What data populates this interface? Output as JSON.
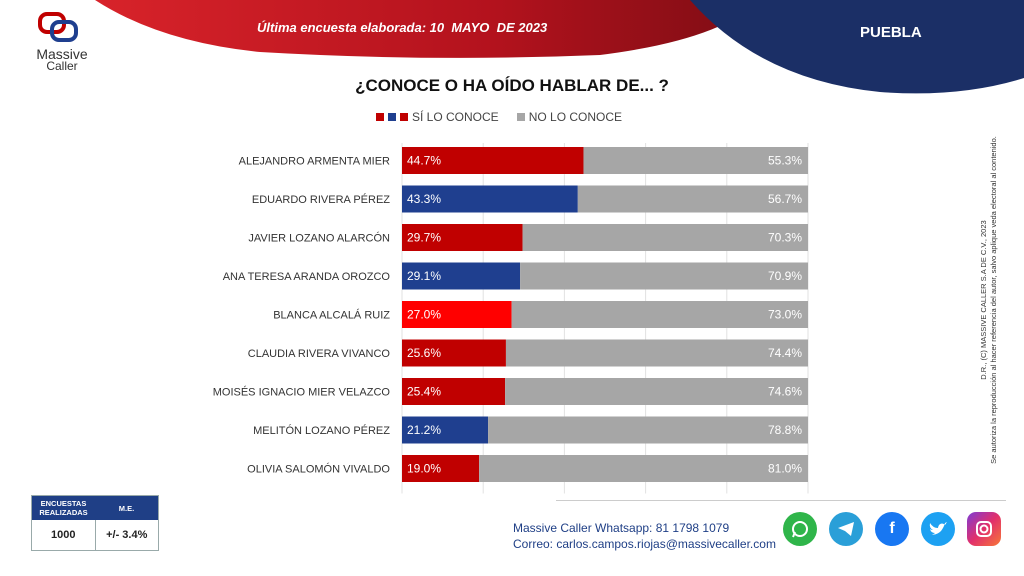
{
  "header": {
    "brand_line1": "Massive",
    "brand_line2": "Caller",
    "survey_date": "Última encuesta elaborada: 10  MAYO  DE 2023",
    "region": "PUEBLA"
  },
  "colors": {
    "red": "#c00000",
    "bright_red": "#ff0000",
    "blue": "#1f3f8f",
    "gray": "#a6a6a6",
    "header_red": "#b3121d",
    "header_navy": "#1b2f66"
  },
  "legend": {
    "known": "SÍ LO CONOCE",
    "unknown": "NO LO CONOCE"
  },
  "chart_data": {
    "type": "bar",
    "orientation": "horizontal-stacked-100",
    "title": "¿CONOCE O HA OÍDO HABLAR DE... ?",
    "categories": [
      "ALEJANDRO ARMENTA MIER",
      "EDUARDO RIVERA PÉREZ",
      "JAVIER LOZANO ALARCÓN",
      "ANA TERESA ARANDA OROZCO",
      "BLANCA ALCALÁ RUIZ",
      "CLAUDIA RIVERA VIVANCO",
      "MOISÉS IGNACIO MIER VELAZCO",
      "MELITÓN LOZANO PÉREZ",
      "OLIVIA SALOMÓN VIVALDO"
    ],
    "series": [
      {
        "name": "SÍ LO CONOCE",
        "values": [
          44.7,
          43.3,
          29.7,
          29.1,
          27.0,
          25.6,
          25.4,
          21.2,
          19.0
        ],
        "labels": [
          "44.7%",
          "43.3%",
          "29.7%",
          "29.1%",
          "27.0%",
          "25.6%",
          "25.4%",
          "21.2%",
          "19.0%"
        ],
        "bar_colors": [
          "red",
          "blue",
          "red",
          "blue",
          "bright_red",
          "red",
          "red",
          "blue",
          "red"
        ]
      },
      {
        "name": "NO LO CONOCE",
        "values": [
          55.3,
          56.7,
          70.3,
          70.9,
          73.0,
          74.4,
          74.6,
          78.8,
          81.0
        ],
        "labels": [
          "55.3%",
          "56.7%",
          "70.3%",
          "70.9%",
          "73.0%",
          "74.4%",
          "74.6%",
          "78.8%",
          "81.0%"
        ]
      }
    ],
    "xlim": [
      0,
      100
    ],
    "grid": true,
    "legend_position": "top"
  },
  "side_note": {
    "line1": "D.R., (C) MASSIVE CALLER S.A DE C.V., 2023",
    "line2": "Se autoriza la reproducción al hacer referencia del autor, salvo aplique veda electoral al contenido."
  },
  "stats": {
    "col1_header": "ENCUESTAS REALIZADAS",
    "col2_header": "M.E.",
    "col1_value": "1000",
    "col2_value": "+/- 3.4%"
  },
  "contact": {
    "whatsapp_line": "Massive Caller Whatsapp: 81 1798 1079",
    "email_label": "Correo:",
    "email": "carlos.campos.riojas@massivecaller.com"
  },
  "social_icons": [
    "whatsapp-icon",
    "telegram-icon",
    "facebook-icon",
    "twitter-icon",
    "instagram-icon"
  ]
}
